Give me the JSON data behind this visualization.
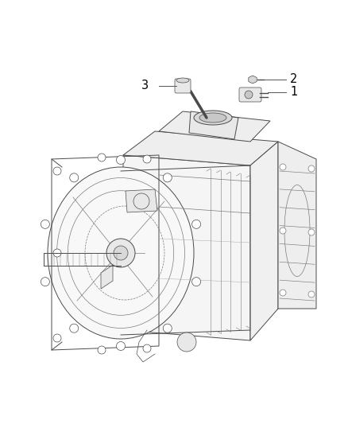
{
  "background_color": "#ffffff",
  "figure_width": 4.38,
  "figure_height": 5.33,
  "dpi": 100,
  "line_color": "#4a4a4a",
  "light_color": "#7a7a7a",
  "vlight_color": "#aaaaaa",
  "fill_light": "#f2f2f2",
  "fill_mid": "#e8e8e8",
  "fill_dark": "#d8d8d8",
  "label_1": "1",
  "label_2": "2",
  "label_3": "3",
  "label_fontsize": 10.5,
  "label_color": "#000000",
  "leader_color": "#555555",
  "leader_lw": 0.7
}
